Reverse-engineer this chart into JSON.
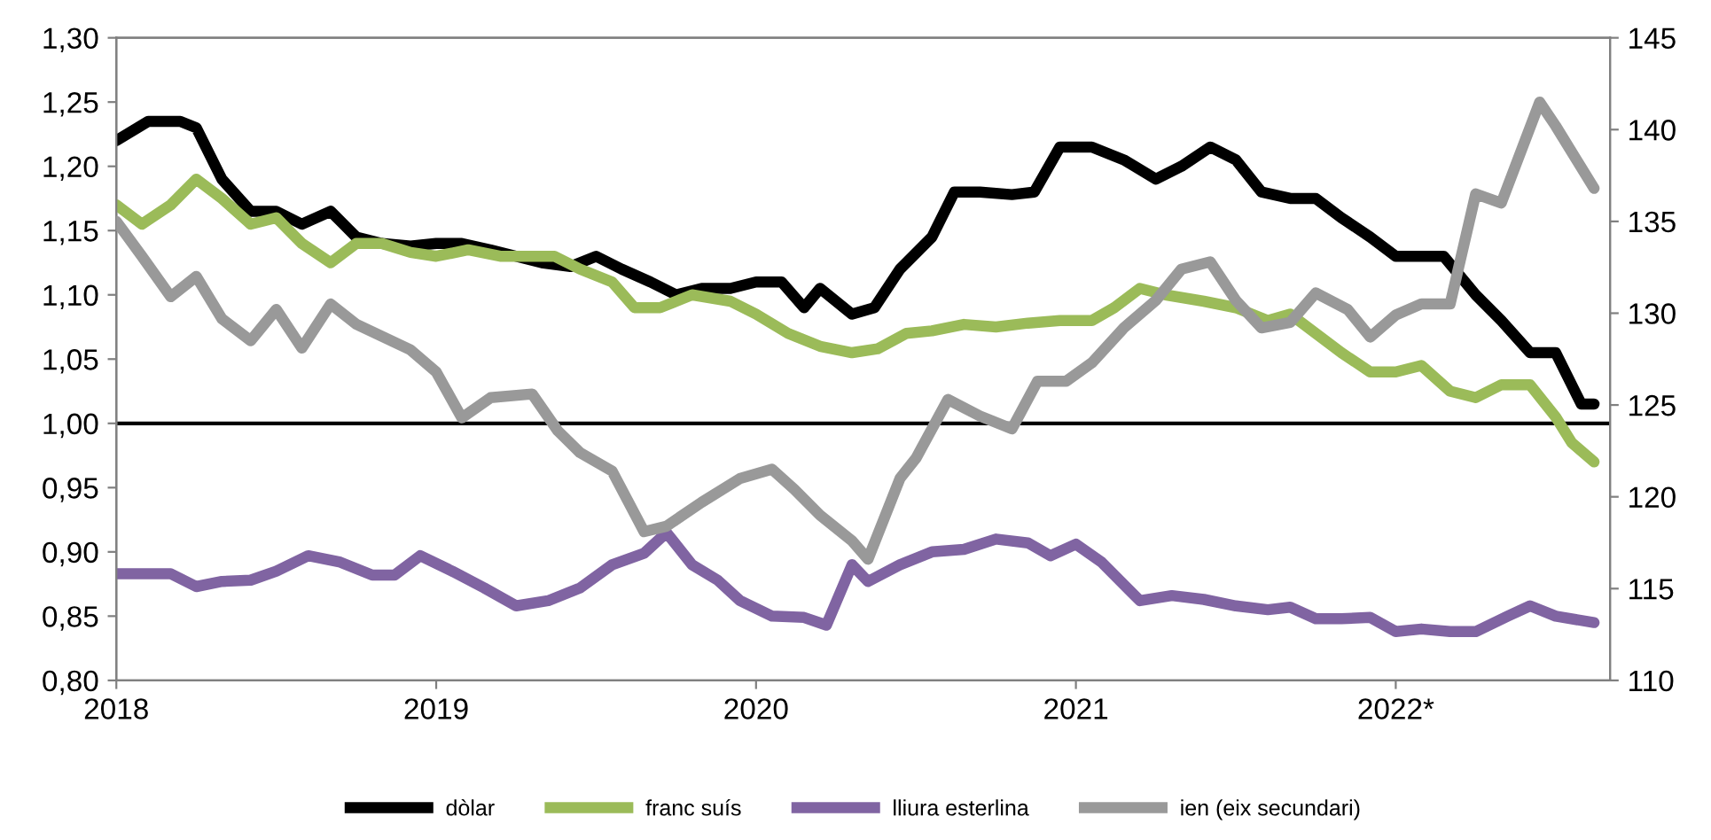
{
  "chart_data": {
    "type": "line",
    "xlim": [
      2018,
      2022.67
    ],
    "xticks": [
      2018,
      2019,
      2020,
      2021,
      {
        "value": 2022,
        "label": "2022*"
      }
    ],
    "ylim": [
      0.8,
      1.3
    ],
    "yticks": [
      {
        "value": 0.8,
        "label": "0,80"
      },
      {
        "value": 0.85,
        "label": "0,85"
      },
      {
        "value": 0.9,
        "label": "0,90"
      },
      {
        "value": 0.95,
        "label": "0,95"
      },
      {
        "value": 1.0,
        "label": "1,00"
      },
      {
        "value": 1.05,
        "label": "1,05"
      },
      {
        "value": 1.1,
        "label": "1,10"
      },
      {
        "value": 1.15,
        "label": "1,15"
      },
      {
        "value": 1.2,
        "label": "1,20"
      },
      {
        "value": 1.25,
        "label": "1,25"
      },
      {
        "value": 1.3,
        "label": "1,30"
      }
    ],
    "y2lim": [
      110,
      145
    ],
    "y2ticks": [
      110,
      115,
      120,
      125,
      130,
      135,
      140,
      145
    ],
    "grid": false,
    "legend": "bottom",
    "marker": "none",
    "line_style": "solid",
    "ref_lines": [
      {
        "axis": "y",
        "value": 1.0,
        "color": "#000000",
        "line_style": "solid"
      }
    ],
    "series": [
      {
        "name": "dòlar",
        "color": "#000000",
        "x": [
          2018.0,
          2018.1,
          2018.2,
          2018.25,
          2018.33,
          2018.42,
          2018.5,
          2018.58,
          2018.67,
          2018.75,
          2018.83,
          2018.92,
          2019.0,
          2019.08,
          2019.17,
          2019.25,
          2019.33,
          2019.42,
          2019.5,
          2019.58,
          2019.67,
          2019.75,
          2019.83,
          2019.92,
          2020.0,
          2020.08,
          2020.15,
          2020.2,
          2020.3,
          2020.37,
          2020.45,
          2020.55,
          2020.62,
          2020.7,
          2020.8,
          2020.87,
          2020.95,
          2021.05,
          2021.15,
          2021.25,
          2021.33,
          2021.42,
          2021.5,
          2021.58,
          2021.67,
          2021.75,
          2021.83,
          2021.92,
          2022.0,
          2022.08,
          2022.15,
          2022.25,
          2022.33,
          2022.42,
          2022.5,
          2022.58,
          2022.62
        ],
        "values": [
          1.22,
          1.235,
          1.235,
          1.23,
          1.19,
          1.165,
          1.165,
          1.155,
          1.165,
          1.145,
          1.14,
          1.138,
          1.14,
          1.14,
          1.135,
          1.13,
          1.125,
          1.122,
          1.13,
          1.12,
          1.11,
          1.1,
          1.105,
          1.105,
          1.11,
          1.11,
          1.09,
          1.105,
          1.085,
          1.09,
          1.12,
          1.145,
          1.18,
          1.18,
          1.178,
          1.18,
          1.215,
          1.215,
          1.205,
          1.19,
          1.2,
          1.215,
          1.205,
          1.18,
          1.175,
          1.175,
          1.16,
          1.145,
          1.13,
          1.13,
          1.13,
          1.1,
          1.08,
          1.055,
          1.055,
          1.015,
          1.015
        ]
      },
      {
        "name": "franc suís",
        "color": "#9bbb59",
        "x": [
          2018.0,
          2018.08,
          2018.17,
          2018.25,
          2018.33,
          2018.42,
          2018.5,
          2018.58,
          2018.67,
          2018.75,
          2018.83,
          2018.92,
          2019.0,
          2019.1,
          2019.2,
          2019.3,
          2019.37,
          2019.45,
          2019.55,
          2019.62,
          2019.7,
          2019.8,
          2019.92,
          2020.0,
          2020.1,
          2020.2,
          2020.3,
          2020.38,
          2020.47,
          2020.55,
          2020.65,
          2020.75,
          2020.85,
          2020.95,
          2021.05,
          2021.12,
          2021.2,
          2021.28,
          2021.4,
          2021.5,
          2021.6,
          2021.67,
          2021.75,
          2021.83,
          2021.92,
          2022.0,
          2022.08,
          2022.17,
          2022.25,
          2022.33,
          2022.42,
          2022.5,
          2022.55,
          2022.62
        ],
        "values": [
          1.17,
          1.155,
          1.17,
          1.19,
          1.175,
          1.155,
          1.16,
          1.14,
          1.125,
          1.14,
          1.14,
          1.133,
          1.13,
          1.135,
          1.13,
          1.13,
          1.13,
          1.12,
          1.11,
          1.09,
          1.09,
          1.1,
          1.095,
          1.085,
          1.07,
          1.06,
          1.055,
          1.058,
          1.07,
          1.072,
          1.077,
          1.075,
          1.078,
          1.08,
          1.08,
          1.09,
          1.105,
          1.1,
          1.095,
          1.09,
          1.08,
          1.085,
          1.07,
          1.055,
          1.04,
          1.04,
          1.045,
          1.025,
          1.02,
          1.03,
          1.03,
          1.005,
          0.985,
          0.97
        ]
      },
      {
        "name": "lliura esterlina",
        "color": "#8064a2",
        "x": [
          2018.0,
          2018.1,
          2018.17,
          2018.25,
          2018.33,
          2018.42,
          2018.5,
          2018.6,
          2018.7,
          2018.8,
          2018.87,
          2018.95,
          2019.05,
          2019.15,
          2019.25,
          2019.35,
          2019.45,
          2019.55,
          2019.65,
          2019.72,
          2019.8,
          2019.88,
          2019.95,
          2020.05,
          2020.15,
          2020.22,
          2020.3,
          2020.35,
          2020.45,
          2020.55,
          2020.65,
          2020.75,
          2020.85,
          2020.92,
          2021.0,
          2021.08,
          2021.2,
          2021.3,
          2021.4,
          2021.5,
          2021.6,
          2021.67,
          2021.75,
          2021.83,
          2021.92,
          2022.0,
          2022.08,
          2022.17,
          2022.25,
          2022.35,
          2022.42,
          2022.5,
          2022.62
        ],
        "values": [
          0.883,
          0.883,
          0.883,
          0.873,
          0.877,
          0.878,
          0.885,
          0.897,
          0.892,
          0.882,
          0.882,
          0.897,
          0.885,
          0.872,
          0.858,
          0.862,
          0.872,
          0.89,
          0.899,
          0.915,
          0.89,
          0.878,
          0.862,
          0.85,
          0.849,
          0.843,
          0.89,
          0.877,
          0.89,
          0.9,
          0.902,
          0.91,
          0.907,
          0.897,
          0.906,
          0.892,
          0.862,
          0.866,
          0.863,
          0.858,
          0.855,
          0.857,
          0.848,
          0.848,
          0.849,
          0.838,
          0.84,
          0.838,
          0.838,
          0.85,
          0.858,
          0.85,
          0.845
        ]
      },
      {
        "name": "ien (eix secundari)",
        "color": "#999999",
        "axis": "y2",
        "x": [
          2018.0,
          2018.08,
          2018.17,
          2018.25,
          2018.33,
          2018.42,
          2018.5,
          2018.58,
          2018.67,
          2018.75,
          2018.92,
          2019.0,
          2019.08,
          2019.17,
          2019.3,
          2019.38,
          2019.45,
          2019.55,
          2019.65,
          2019.72,
          2019.83,
          2019.95,
          2020.05,
          2020.12,
          2020.2,
          2020.3,
          2020.35,
          2020.45,
          2020.5,
          2020.6,
          2020.7,
          2020.8,
          2020.88,
          2020.97,
          2021.05,
          2021.15,
          2021.25,
          2021.33,
          2021.42,
          2021.5,
          2021.58,
          2021.67,
          2021.75,
          2021.85,
          2021.92,
          2022.0,
          2022.08,
          2022.17,
          2022.25,
          2022.33,
          2022.45,
          2022.5,
          2022.62
        ],
        "values": [
          135.0,
          133.1,
          130.9,
          132.0,
          129.7,
          128.5,
          130.2,
          128.1,
          130.5,
          129.4,
          128.0,
          126.8,
          124.3,
          125.4,
          125.6,
          123.6,
          122.4,
          121.4,
          118.1,
          118.4,
          119.7,
          121.0,
          121.5,
          120.4,
          119.0,
          117.6,
          116.6,
          121.0,
          122.1,
          125.3,
          124.4,
          123.7,
          126.3,
          126.3,
          127.3,
          129.2,
          130.7,
          132.4,
          132.8,
          130.7,
          129.2,
          129.5,
          131.1,
          130.2,
          128.7,
          129.9,
          130.5,
          130.5,
          136.5,
          136.0,
          141.5,
          140.2,
          136.8
        ]
      }
    ]
  }
}
